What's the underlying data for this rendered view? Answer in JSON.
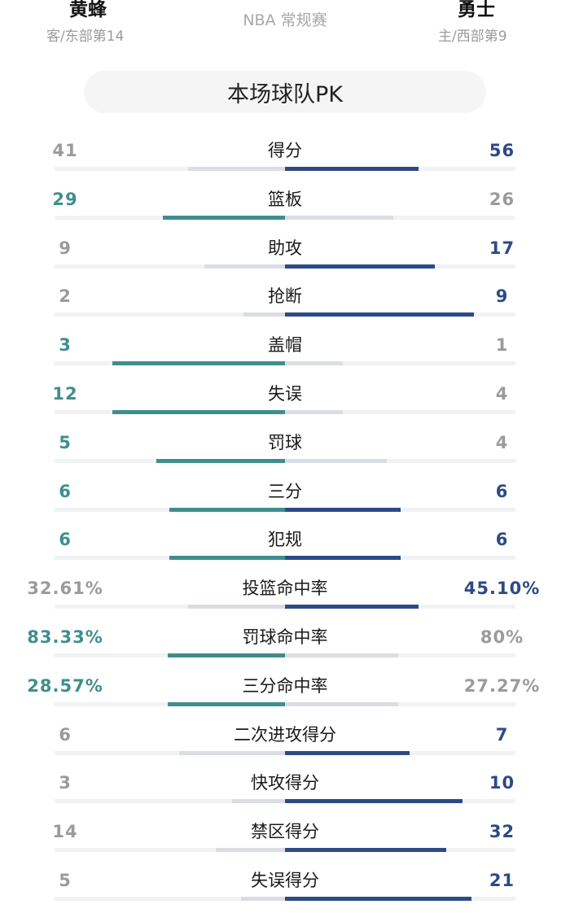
{
  "header": {
    "away": {
      "name": "黄蜂",
      "sub": "客/东部第14"
    },
    "home": {
      "name": "勇士",
      "sub": "主/西部第9"
    },
    "league": "NBA 常规赛"
  },
  "pk_title": "本场球队PK",
  "colors": {
    "away_win": "#3f8e8e",
    "home_win": "#2d4a86",
    "lose": "#dadde2",
    "track": "#f1f2f4"
  },
  "stats": [
    {
      "label": "得分",
      "left": "41",
      "right": "56",
      "left_fill": 0.42,
      "right_fill": 0.58,
      "winner": "right"
    },
    {
      "label": "篮板",
      "left": "29",
      "right": "26",
      "left_fill": 0.53,
      "right_fill": 0.47,
      "winner": "left"
    },
    {
      "label": "助攻",
      "left": "9",
      "right": "17",
      "left_fill": 0.35,
      "right_fill": 0.65,
      "winner": "right"
    },
    {
      "label": "抢断",
      "left": "2",
      "right": "9",
      "left_fill": 0.18,
      "right_fill": 0.82,
      "winner": "right"
    },
    {
      "label": "盖帽",
      "left": "3",
      "right": "1",
      "left_fill": 0.75,
      "right_fill": 0.25,
      "winner": "left"
    },
    {
      "label": "失误",
      "left": "12",
      "right": "4",
      "left_fill": 0.75,
      "right_fill": 0.25,
      "winner": "left"
    },
    {
      "label": "罚球",
      "left": "5",
      "right": "4",
      "left_fill": 0.56,
      "right_fill": 0.44,
      "winner": "left"
    },
    {
      "label": "三分",
      "left": "6",
      "right": "6",
      "left_fill": 0.5,
      "right_fill": 0.5,
      "winner": "both"
    },
    {
      "label": "犯规",
      "left": "6",
      "right": "6",
      "left_fill": 0.5,
      "right_fill": 0.5,
      "winner": "both"
    },
    {
      "label": "投篮命中率",
      "left": "32.61%",
      "right": "45.10%",
      "left_fill": 0.42,
      "right_fill": 0.58,
      "winner": "right"
    },
    {
      "label": "罚球命中率",
      "left": "83.33%",
      "right": "80%",
      "left_fill": 0.51,
      "right_fill": 0.49,
      "winner": "left"
    },
    {
      "label": "三分命中率",
      "left": "28.57%",
      "right": "27.27%",
      "left_fill": 0.51,
      "right_fill": 0.49,
      "winner": "left"
    },
    {
      "label": "二次进攻得分",
      "left": "6",
      "right": "7",
      "left_fill": 0.46,
      "right_fill": 0.54,
      "winner": "right"
    },
    {
      "label": "快攻得分",
      "left": "3",
      "right": "10",
      "left_fill": 0.23,
      "right_fill": 0.77,
      "winner": "right"
    },
    {
      "label": "禁区得分",
      "left": "14",
      "right": "32",
      "left_fill": 0.3,
      "right_fill": 0.7,
      "winner": "right"
    },
    {
      "label": "失误得分",
      "left": "5",
      "right": "21",
      "left_fill": 0.19,
      "right_fill": 0.81,
      "winner": "right"
    }
  ]
}
